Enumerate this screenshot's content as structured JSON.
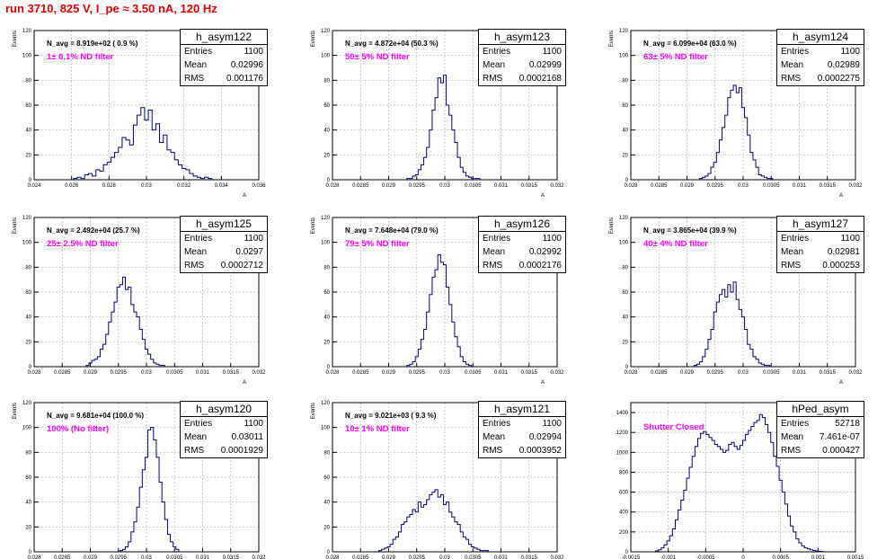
{
  "header": {
    "run_title": "run 3710,   825 V, I_pe ≈ 3.50 nA, 120 Hz"
  },
  "colors": {
    "title": "#e00000",
    "histogram": "#000080",
    "filter_label": "#ff00ff",
    "grid": "#b0b0b0"
  },
  "panels": [
    {
      "hist_name": "h_asym122",
      "navg": "N_avg = 8.919e+02 ( 0.9 %)",
      "filter": "1± 0.1% ND filter",
      "stats": [
        {
          "label": "Entries",
          "value": "1100"
        },
        {
          "label": "Mean",
          "value": "0.02996"
        },
        {
          "label": "RMS",
          "value": "0.001176"
        }
      ]
    },
    {
      "hist_name": "h_asym123",
      "navg": "N_avg = 4.872e+04 (50.3 %)",
      "filter": "50± 5% ND filter",
      "stats": [
        {
          "label": "Entries",
          "value": "1100"
        },
        {
          "label": "Mean",
          "value": "0.02999"
        },
        {
          "label": "RMS",
          "value": "0.0002168"
        }
      ]
    },
    {
      "hist_name": "h_asym124",
      "navg": "N_avg = 6.099e+04 (63.0 %)",
      "filter": "63± 5% ND filter",
      "stats": [
        {
          "label": "Entries",
          "value": "1100"
        },
        {
          "label": "Mean",
          "value": "0.02989"
        },
        {
          "label": "RMS",
          "value": "0.0002275"
        }
      ]
    },
    {
      "hist_name": "h_asym125",
      "navg": "N_avg = 2.492e+04 (25.7 %)",
      "filter": "25± 2.5% ND filter",
      "stats": [
        {
          "label": "Entries",
          "value": "1100"
        },
        {
          "label": "Mean",
          "value": "0.0297"
        },
        {
          "label": "RMS",
          "value": "0.0002712"
        }
      ]
    },
    {
      "hist_name": "h_asym126",
      "navg": "N_avg = 7.648e+04 (79.0 %)",
      "filter": "79± 5% ND filter",
      "stats": [
        {
          "label": "Entries",
          "value": "1100"
        },
        {
          "label": "Mean",
          "value": "0.02992"
        },
        {
          "label": "RMS",
          "value": "0.0002176"
        }
      ]
    },
    {
      "hist_name": "h_asym127",
      "navg": "N_avg = 3.865e+04 (39.9 %)",
      "filter": "40± 4% ND filter",
      "stats": [
        {
          "label": "Entries",
          "value": "1100"
        },
        {
          "label": "Mean",
          "value": "0.02981"
        },
        {
          "label": "RMS",
          "value": "0.000253"
        }
      ]
    },
    {
      "hist_name": "h_asym120",
      "navg": "N_avg = 9.681e+04 (100.0 %)",
      "filter": "100% (No filter)",
      "stats": [
        {
          "label": "Entries",
          "value": "1100"
        },
        {
          "label": "Mean",
          "value": "0.03011"
        },
        {
          "label": "RMS",
          "value": "0.0001929"
        }
      ]
    },
    {
      "hist_name": "h_asym121",
      "navg": "N_avg = 9.021e+03 ( 9.3 %)",
      "filter": "10± 1% ND filter",
      "stats": [
        {
          "label": "Entries",
          "value": "1100"
        },
        {
          "label": "Mean",
          "value": "0.02994"
        },
        {
          "label": "RMS",
          "value": "0.0003952"
        }
      ]
    },
    {
      "hist_name": "hPed_asym",
      "navg": "",
      "filter": "Shutter Closed",
      "stats": [
        {
          "label": "Entries",
          "value": "52718"
        },
        {
          "label": "Mean",
          "value": "7.461e-07"
        },
        {
          "label": "RMS",
          "value": "0.000427"
        }
      ]
    }
  ],
  "chart_data": [
    {
      "type": "bar",
      "hist_name": "h_asym122",
      "ylabel": "Events",
      "xlabel": "A",
      "xlim": [
        0.024,
        0.036
      ],
      "ylim": [
        0,
        120
      ],
      "xticks": [
        0.024,
        0.026,
        0.028,
        0.03,
        0.032,
        0.034,
        0.036
      ],
      "xtick_labels": [
        "0.024",
        "0.026",
        "0.028",
        "0.03",
        "0.032",
        "0.034",
        "0.036"
      ],
      "yticks": [
        0,
        20,
        40,
        60,
        80,
        100,
        120
      ],
      "mean": 0.02996,
      "rms": 0.001176,
      "bin_width": 0.0002,
      "x": [
        0.0262,
        0.0264,
        0.0266,
        0.0268,
        0.027,
        0.0272,
        0.0274,
        0.0276,
        0.0278,
        0.028,
        0.0282,
        0.0284,
        0.0286,
        0.0288,
        0.029,
        0.0292,
        0.0294,
        0.0296,
        0.0298,
        0.03,
        0.0302,
        0.0304,
        0.0306,
        0.0308,
        0.031,
        0.0312,
        0.0314,
        0.0316,
        0.0318,
        0.032,
        0.0322,
        0.0324,
        0.0326,
        0.0328,
        0.033,
        0.0332,
        0.0334
      ],
      "values": [
        1,
        2,
        1,
        4,
        5,
        3,
        8,
        7,
        12,
        14,
        18,
        22,
        26,
        34,
        32,
        28,
        44,
        52,
        58,
        48,
        56,
        40,
        45,
        30,
        36,
        24,
        22,
        16,
        12,
        9,
        8,
        5,
        3,
        2,
        1,
        2,
        1
      ]
    },
    {
      "type": "bar",
      "hist_name": "h_asym123",
      "ylabel": "Events",
      "xlabel": "A",
      "xlim": [
        0.028,
        0.032
      ],
      "ylim": [
        0,
        120
      ],
      "xticks": [
        0.028,
        0.0285,
        0.029,
        0.0295,
        0.03,
        0.0305,
        0.031,
        0.0315,
        0.032
      ],
      "xtick_labels": [
        "0.028",
        "0.0285",
        "0.029",
        "0.0295",
        "0.03",
        "0.0305",
        "0.031",
        "0.0315",
        "0.032"
      ],
      "yticks": [
        0,
        20,
        40,
        60,
        80,
        100,
        120
      ],
      "mean": 0.02999,
      "rms": 0.0002168,
      "bin_width": 5e-05,
      "x": [
        0.02935,
        0.0294,
        0.02945,
        0.0295,
        0.02955,
        0.0296,
        0.02965,
        0.0297,
        0.02975,
        0.0298,
        0.02985,
        0.0299,
        0.02995,
        0.03,
        0.03005,
        0.0301,
        0.03015,
        0.0302,
        0.03025,
        0.0303,
        0.03035,
        0.0304,
        0.03045,
        0.0305,
        0.03055,
        0.0306
      ],
      "values": [
        1,
        1,
        3,
        4,
        8,
        12,
        18,
        26,
        40,
        56,
        66,
        82,
        78,
        84,
        60,
        52,
        40,
        30,
        18,
        10,
        6,
        3,
        2,
        1,
        1,
        1
      ]
    },
    {
      "type": "bar",
      "hist_name": "h_asym124",
      "ylabel": "Events",
      "xlabel": "A",
      "xlim": [
        0.028,
        0.032
      ],
      "ylim": [
        0,
        120
      ],
      "xticks": [
        0.028,
        0.0285,
        0.029,
        0.0295,
        0.03,
        0.0305,
        0.031,
        0.0315,
        0.032
      ],
      "xtick_labels": [
        "0.028",
        "0.0285",
        "0.029",
        "0.0295",
        "0.03",
        "0.0305",
        "0.031",
        "0.0315",
        "0.032"
      ],
      "yticks": [
        0,
        20,
        40,
        60,
        80,
        100,
        120
      ],
      "mean": 0.02989,
      "rms": 0.0002275,
      "bin_width": 5e-05,
      "x": [
        0.02925,
        0.0293,
        0.02935,
        0.0294,
        0.02945,
        0.0295,
        0.02955,
        0.0296,
        0.02965,
        0.0297,
        0.02975,
        0.0298,
        0.02985,
        0.0299,
        0.02995,
        0.03,
        0.03005,
        0.0301,
        0.03015,
        0.0302,
        0.03025,
        0.0303,
        0.03035,
        0.0304,
        0.03045,
        0.0305
      ],
      "values": [
        1,
        2,
        3,
        5,
        10,
        14,
        22,
        32,
        42,
        52,
        66,
        72,
        76,
        70,
        74,
        58,
        50,
        36,
        22,
        16,
        10,
        4,
        3,
        2,
        1,
        1
      ]
    },
    {
      "type": "bar",
      "hist_name": "h_asym125",
      "ylabel": "Events",
      "xlabel": "A",
      "xlim": [
        0.028,
        0.032
      ],
      "ylim": [
        0,
        120
      ],
      "xticks": [
        0.028,
        0.0285,
        0.029,
        0.0295,
        0.03,
        0.0305,
        0.031,
        0.0315,
        0.032
      ],
      "xtick_labels": [
        "0.028",
        "0.0285",
        "0.029",
        "0.0295",
        "0.03",
        "0.0305",
        "0.031",
        "0.0315",
        "0.032"
      ],
      "yticks": [
        0,
        20,
        40,
        60,
        80,
        100,
        120
      ],
      "mean": 0.0297,
      "rms": 0.0002712,
      "bin_width": 5e-05,
      "x": [
        0.02895,
        0.029,
        0.02905,
        0.0291,
        0.02915,
        0.0292,
        0.02925,
        0.0293,
        0.02935,
        0.0294,
        0.02945,
        0.0295,
        0.02955,
        0.0296,
        0.02965,
        0.0297,
        0.02975,
        0.0298,
        0.02985,
        0.0299,
        0.02995,
        0.03,
        0.03005,
        0.0301,
        0.03015,
        0.0302,
        0.03025,
        0.0303
      ],
      "values": [
        1,
        3,
        5,
        6,
        8,
        14,
        18,
        26,
        36,
        44,
        52,
        64,
        66,
        72,
        62,
        64,
        50,
        44,
        40,
        30,
        22,
        14,
        10,
        6,
        3,
        2,
        1,
        1
      ]
    },
    {
      "type": "bar",
      "hist_name": "h_asym126",
      "ylabel": "Events",
      "xlabel": "A",
      "xlim": [
        0.028,
        0.032
      ],
      "ylim": [
        0,
        120
      ],
      "xticks": [
        0.028,
        0.0285,
        0.029,
        0.0295,
        0.03,
        0.0305,
        0.031,
        0.0315,
        0.032
      ],
      "xtick_labels": [
        "0.028",
        "0.0285",
        "0.029",
        "0.0295",
        "0.03",
        "0.0305",
        "0.031",
        "0.0315",
        "0.032"
      ],
      "yticks": [
        0,
        20,
        40,
        60,
        80,
        100,
        120
      ],
      "mean": 0.02992,
      "rms": 0.0002176,
      "bin_width": 5e-05,
      "x": [
        0.02935,
        0.0294,
        0.02945,
        0.0295,
        0.02955,
        0.0296,
        0.02965,
        0.0297,
        0.02975,
        0.0298,
        0.02985,
        0.0299,
        0.02995,
        0.03,
        0.03005,
        0.0301,
        0.03015,
        0.0302,
        0.03025,
        0.0303,
        0.03035,
        0.0304,
        0.03045
      ],
      "values": [
        1,
        2,
        4,
        8,
        14,
        22,
        30,
        44,
        58,
        72,
        78,
        90,
        84,
        82,
        64,
        50,
        36,
        24,
        16,
        8,
        4,
        2,
        1
      ]
    },
    {
      "type": "bar",
      "hist_name": "h_asym127",
      "ylabel": "Events",
      "xlabel": "A",
      "xlim": [
        0.028,
        0.032
      ],
      "ylim": [
        0,
        120
      ],
      "xticks": [
        0.028,
        0.0285,
        0.029,
        0.0295,
        0.03,
        0.0305,
        0.031,
        0.0315,
        0.032
      ],
      "xtick_labels": [
        "0.028",
        "0.0285",
        "0.029",
        "0.0295",
        "0.03",
        "0.0305",
        "0.031",
        "0.0315",
        "0.032"
      ],
      "yticks": [
        0,
        20,
        40,
        60,
        80,
        100,
        120
      ],
      "mean": 0.02981,
      "rms": 0.000253,
      "bin_width": 5e-05,
      "x": [
        0.02915,
        0.0292,
        0.02925,
        0.0293,
        0.02935,
        0.0294,
        0.02945,
        0.0295,
        0.02955,
        0.0296,
        0.02965,
        0.0297,
        0.02975,
        0.0298,
        0.02985,
        0.0299,
        0.02995,
        0.03,
        0.03005,
        0.0301,
        0.03015,
        0.0302,
        0.03025,
        0.0303,
        0.03035,
        0.0304,
        0.03045
      ],
      "values": [
        1,
        2,
        4,
        8,
        14,
        22,
        30,
        44,
        52,
        58,
        62,
        56,
        66,
        60,
        68,
        54,
        46,
        40,
        30,
        18,
        14,
        8,
        6,
        3,
        2,
        1,
        1
      ]
    },
    {
      "type": "bar",
      "hist_name": "h_asym120",
      "ylabel": "Events",
      "xlabel": "A",
      "xlim": [
        0.028,
        0.032
      ],
      "ylim": [
        0,
        120
      ],
      "xticks": [
        0.028,
        0.0285,
        0.029,
        0.0295,
        0.03,
        0.0305,
        0.031,
        0.0315,
        0.032
      ],
      "xtick_labels": [
        "0.028",
        "0.0285",
        "0.029",
        "0.0295",
        "0.03",
        "0.0305",
        "0.031",
        "0.0315",
        "0.032"
      ],
      "yticks": [
        0,
        20,
        40,
        60,
        80,
        100,
        120
      ],
      "mean": 0.03011,
      "rms": 0.0001929,
      "bin_width": 5e-05,
      "x": [
        0.02955,
        0.0296,
        0.02965,
        0.0297,
        0.02975,
        0.0298,
        0.02985,
        0.0299,
        0.02995,
        0.03,
        0.03005,
        0.0301,
        0.03015,
        0.0302,
        0.03025,
        0.0303,
        0.03035,
        0.0304,
        0.03045,
        0.0305,
        0.03055
      ],
      "values": [
        1,
        2,
        4,
        8,
        16,
        24,
        36,
        52,
        66,
        76,
        98,
        100,
        90,
        76,
        56,
        40,
        26,
        14,
        8,
        4,
        2
      ]
    },
    {
      "type": "bar",
      "hist_name": "h_asym121",
      "ylabel": "Events",
      "xlabel": "A",
      "xlim": [
        0.028,
        0.032
      ],
      "ylim": [
        0,
        120
      ],
      "xticks": [
        0.028,
        0.0285,
        0.029,
        0.0295,
        0.03,
        0.0305,
        0.031,
        0.0315,
        0.032
      ],
      "xtick_labels": [
        "0.028",
        "0.0285",
        "0.029",
        "0.0295",
        "0.03",
        "0.0305",
        "0.031",
        "0.0315",
        "0.032"
      ],
      "yticks": [
        0,
        20,
        40,
        60,
        80,
        100,
        120
      ],
      "mean": 0.02994,
      "rms": 0.0003952,
      "bin_width": 5e-05,
      "x": [
        0.02885,
        0.0289,
        0.02895,
        0.029,
        0.02905,
        0.0291,
        0.02915,
        0.0292,
        0.02925,
        0.0293,
        0.02935,
        0.0294,
        0.02945,
        0.0295,
        0.02955,
        0.0296,
        0.02965,
        0.0297,
        0.02975,
        0.0298,
        0.02985,
        0.0299,
        0.02995,
        0.03,
        0.03005,
        0.0301,
        0.03015,
        0.0302,
        0.03025,
        0.0303,
        0.03035,
        0.0304,
        0.03045,
        0.0305,
        0.03055,
        0.0306,
        0.03065,
        0.0307,
        0.03075
      ],
      "values": [
        1,
        2,
        3,
        4,
        6,
        10,
        12,
        16,
        22,
        24,
        28,
        30,
        34,
        32,
        40,
        36,
        38,
        42,
        46,
        48,
        50,
        44,
        46,
        38,
        40,
        32,
        28,
        24,
        22,
        16,
        12,
        10,
        6,
        4,
        3,
        2,
        1,
        1,
        1
      ]
    },
    {
      "type": "bar",
      "hist_name": "hPed_asym",
      "ylabel": "",
      "xlabel": "",
      "xlim": [
        -0.0015,
        0.0015
      ],
      "ylim": [
        0,
        1500
      ],
      "xticks": [
        -0.0015,
        -0.001,
        -0.0005,
        0,
        0.0005,
        0.001,
        0.0015
      ],
      "xtick_labels": [
        "-0.0015",
        "-0.001",
        "-0.0005",
        "0",
        "0.0005",
        "0.001",
        "0.0015"
      ],
      "yticks": [
        0,
        200,
        400,
        600,
        800,
        1000,
        1200,
        1400
      ],
      "mean": 7.461e-07,
      "rms": 0.000427,
      "bin_width": 3.75e-05,
      "x": [
        -0.00115,
        -0.0011125,
        -0.001075,
        -0.0010375,
        -0.001,
        -0.0009625,
        -0.000925,
        -0.0008875,
        -0.00085,
        -0.0008125,
        -0.000775,
        -0.0007375,
        -0.0007,
        -0.0006625,
        -0.000625,
        -0.0005875,
        -0.00055,
        -0.0005125,
        -0.000475,
        -0.0004375,
        -0.0004,
        -0.0003625,
        -0.000325,
        -0.0002875,
        -0.00025,
        -0.0002125,
        -0.000175,
        -0.0001375,
        -0.0001,
        -6.25e-05,
        -2.5e-05,
        1.25e-05,
        5e-05,
        8.75e-05,
        0.000125,
        0.0001625,
        0.0002,
        0.0002375,
        0.000275,
        0.0003125,
        0.00035,
        0.0003875,
        0.000425,
        0.0004625,
        0.0005,
        0.0005375,
        0.000575,
        0.0006125,
        0.00065,
        0.0006875,
        0.000725,
        0.0007625,
        0.0008,
        0.0008375,
        0.000875,
        0.0009125,
        0.00095,
        0.0009875,
        0.001025,
        0.0010625
      ],
      "values": [
        10,
        20,
        40,
        70,
        110,
        160,
        230,
        320,
        420,
        520,
        620,
        740,
        850,
        960,
        1060,
        1140,
        1190,
        1210,
        1180,
        1150,
        1120,
        1080,
        1060,
        1030,
        1000,
        1020,
        1080,
        1100,
        1060,
        1030,
        1070,
        1120,
        1180,
        1220,
        1260,
        1300,
        1320,
        1380,
        1350,
        1280,
        1200,
        1100,
        960,
        860,
        720,
        600,
        480,
        360,
        260,
        200,
        130,
        90,
        60,
        40,
        30,
        20,
        12,
        8,
        5,
        2
      ]
    }
  ]
}
